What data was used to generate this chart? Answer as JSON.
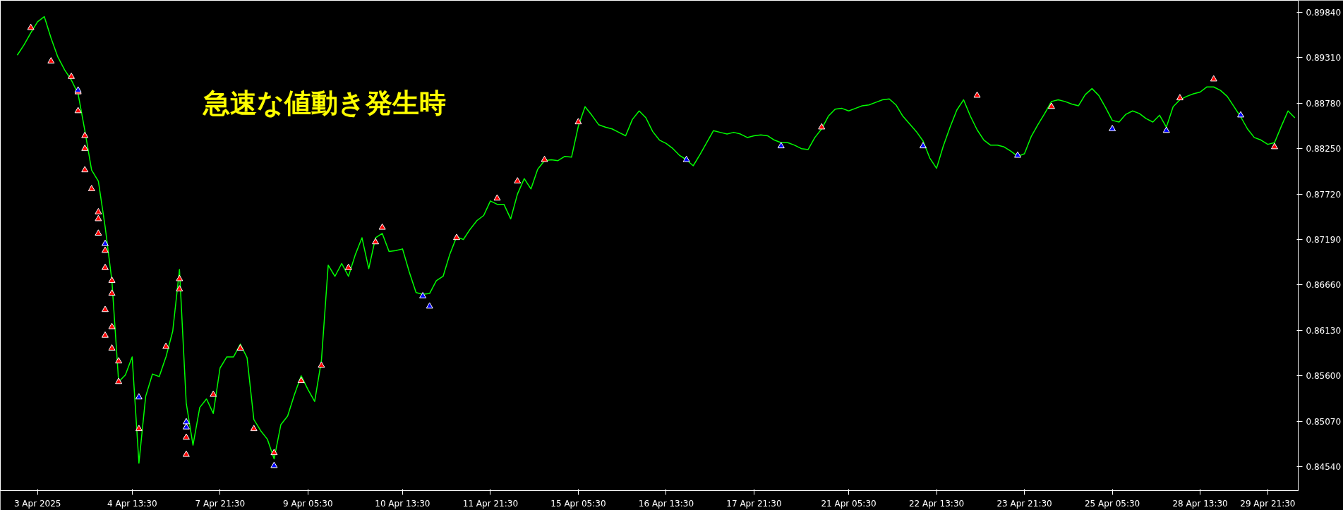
{
  "chart_data": {
    "type": "line",
    "annotations": [
      "急速な値動き発生時"
    ],
    "ylim": [
      0.8426,
      0.8998
    ],
    "yticks": [
      {
        "value": 0.8984,
        "label": "0.89840"
      },
      {
        "value": 0.8931,
        "label": "0.89310"
      },
      {
        "value": 0.8878,
        "label": "0.88780"
      },
      {
        "value": 0.8825,
        "label": "0.88250"
      },
      {
        "value": 0.8772,
        "label": "0.87720"
      },
      {
        "value": 0.8719,
        "label": "0.87190"
      },
      {
        "value": 0.8666,
        "label": "0.86660"
      },
      {
        "value": 0.8613,
        "label": "0.86130"
      },
      {
        "value": 0.856,
        "label": "0.85600"
      },
      {
        "value": 0.8507,
        "label": "0.85070"
      },
      {
        "value": 0.8454,
        "label": "0.84540"
      }
    ],
    "grid": false,
    "categories": [
      null,
      null,
      null,
      "3 Apr 2025",
      null,
      null,
      null,
      null,
      null,
      null,
      null,
      null,
      null,
      null,
      null,
      null,
      null,
      "4 Apr 13:30",
      null,
      null,
      null,
      null,
      null,
      null,
      null,
      null,
      null,
      null,
      null,
      null,
      "7 Apr 21:30",
      null,
      null,
      null,
      null,
      null,
      null,
      null,
      null,
      null,
      null,
      null,
      null,
      "9 Apr 05:30",
      null,
      null,
      null,
      null,
      null,
      null,
      null,
      null,
      null,
      null,
      null,
      null,
      null,
      "10 Apr 13:30",
      null,
      null,
      null,
      null,
      null,
      null,
      null,
      null,
      null,
      null,
      null,
      null,
      "11 Apr 21:30",
      null,
      null,
      null,
      null,
      null,
      null,
      null,
      null,
      null,
      null,
      null,
      null,
      "15 Apr 05:30",
      null,
      null,
      null,
      null,
      null,
      null,
      null,
      null,
      null,
      null,
      null,
      null,
      "16 Apr 13:30",
      null,
      null,
      null,
      null,
      null,
      null,
      null,
      null,
      null,
      null,
      null,
      null,
      "17 Apr 21:30",
      null,
      null,
      null,
      null,
      null,
      null,
      null,
      null,
      null,
      null,
      null,
      null,
      null,
      "21 Apr 05:30",
      null,
      null,
      null,
      null,
      null,
      null,
      null,
      null,
      null,
      null,
      null,
      null,
      "22 Apr 13:30",
      null,
      null,
      null,
      null,
      null,
      null,
      null,
      null,
      null,
      null,
      null,
      null,
      "23 Apr 21:30",
      null,
      null,
      null,
      null,
      null,
      null,
      null,
      null,
      null,
      null,
      null,
      null,
      "25 Apr 05:30",
      null,
      null,
      null,
      null,
      null,
      null,
      null,
      null,
      null,
      null,
      null,
      null,
      "28 Apr 13:30",
      null,
      null,
      null,
      null,
      null,
      null,
      null,
      null,
      null,
      "29 Apr 21:30",
      null,
      null,
      null,
      null
    ],
    "series": [
      {
        "color": "#00ff00",
        "values": [
          0.8934,
          0.8946,
          0.896,
          0.8973,
          0.8979,
          0.8954,
          0.8932,
          0.8917,
          0.8905,
          0.8889,
          0.8846,
          0.88,
          0.8787,
          0.8734,
          0.8671,
          0.8553,
          0.8561,
          0.8582,
          0.8458,
          0.8536,
          0.8562,
          0.8559,
          0.8582,
          0.8612,
          0.8684,
          0.8528,
          0.8479,
          0.8523,
          0.8533,
          0.8516,
          0.8569,
          0.8582,
          0.8582,
          0.8597,
          0.8581,
          0.8509,
          0.8496,
          0.8486,
          0.8463,
          0.8503,
          0.8513,
          0.8538,
          0.856,
          0.8544,
          0.853,
          0.8578,
          0.8689,
          0.8676,
          0.8691,
          0.8676,
          0.8701,
          0.8721,
          0.8685,
          0.8721,
          0.8726,
          0.8705,
          0.8706,
          0.8708,
          0.8681,
          0.8657,
          0.8655,
          0.8656,
          0.8671,
          0.8676,
          0.8702,
          0.8722,
          0.8719,
          0.8731,
          0.8741,
          0.8747,
          0.8764,
          0.876,
          0.876,
          0.8743,
          0.8772,
          0.879,
          0.8778,
          0.8801,
          0.8811,
          0.8812,
          0.8811,
          0.8816,
          0.8815,
          0.8851,
          0.8874,
          0.8864,
          0.8853,
          0.885,
          0.8848,
          0.8844,
          0.884,
          0.8859,
          0.8869,
          0.8861,
          0.8845,
          0.8835,
          0.8831,
          0.8825,
          0.8817,
          0.8812,
          0.8805,
          0.8818,
          0.8832,
          0.8846,
          0.8844,
          0.8842,
          0.8844,
          0.8842,
          0.8838,
          0.884,
          0.8841,
          0.884,
          0.8835,
          0.8832,
          0.8832,
          0.8829,
          0.8825,
          0.8824,
          0.8838,
          0.8848,
          0.8863,
          0.8871,
          0.8872,
          0.8869,
          0.8872,
          0.8875,
          0.8876,
          0.8879,
          0.8882,
          0.8883,
          0.8876,
          0.8863,
          0.8854,
          0.8845,
          0.8834,
          0.8814,
          0.8802,
          0.8828,
          0.885,
          0.887,
          0.8882,
          0.8863,
          0.8847,
          0.8835,
          0.8829,
          0.8829,
          0.8827,
          0.8822,
          0.8816,
          0.8819,
          0.8839,
          0.8853,
          0.8866,
          0.888,
          0.8882,
          0.888,
          0.8877,
          0.8875,
          0.8888,
          0.8895,
          0.8887,
          0.8873,
          0.8858,
          0.8856,
          0.8865,
          0.8869,
          0.8866,
          0.886,
          0.8856,
          0.8864,
          0.885,
          0.8874,
          0.8882,
          0.8886,
          0.8889,
          0.8891,
          0.8897,
          0.8897,
          0.8893,
          0.8886,
          0.8874,
          0.8862,
          0.8848,
          0.8838,
          0.8835,
          0.883,
          0.8832,
          0.8851,
          0.8869,
          0.8861
        ]
      },
      {
        "type": "scatter",
        "marker": "triangle",
        "color": "#ff0000",
        "values": [
          null,
          null,
          0.8966,
          null,
          null,
          0.8927,
          null,
          null,
          0.8909,
          0.8891,
          0.884,
          0.8778,
          0.8751,
          0.8706,
          0.8671,
          0.8577,
          null,
          null,
          0.8498,
          null,
          null,
          null,
          0.8594,
          null,
          0.8673,
          0.8488,
          null,
          null,
          null,
          0.8538,
          null,
          null,
          null,
          0.8592,
          null,
          0.8498,
          null,
          null,
          0.847,
          null,
          null,
          null,
          0.8554,
          null,
          null,
          0.8572,
          null,
          null,
          null,
          0.8686,
          null,
          null,
          null,
          0.8716,
          0.8733,
          null,
          null,
          null,
          null,
          null,
          null,
          null,
          null,
          null,
          null,
          0.8721,
          null,
          null,
          null,
          null,
          null,
          0.8767,
          null,
          null,
          0.8787,
          null,
          null,
          null,
          0.8812,
          null,
          null,
          null,
          null,
          0.8856,
          null,
          null,
          null,
          null,
          null,
          null,
          null,
          null,
          null,
          null,
          null,
          null,
          null,
          null,
          null,
          null,
          null,
          null,
          null,
          null,
          null,
          null,
          null,
          null,
          null,
          null,
          null,
          null,
          null,
          null,
          null,
          null,
          null,
          null,
          null,
          0.885,
          null,
          null,
          null,
          null,
          null,
          null,
          null,
          null,
          null,
          null,
          null,
          null,
          null,
          null,
          null,
          null,
          null,
          null,
          null,
          null,
          null,
          null,
          0.8887,
          null,
          null,
          null,
          null,
          null,
          null,
          null,
          null,
          null,
          null,
          0.8874,
          null,
          null,
          null,
          null,
          null,
          null,
          null,
          null,
          null,
          null,
          null,
          null,
          null,
          null,
          null,
          null,
          null,
          null,
          0.8884,
          null,
          null,
          null,
          null,
          0.8906,
          null,
          null,
          null,
          null,
          null,
          null,
          null,
          null,
          0.8827,
          null,
          null,
          null
        ]
      },
      {
        "type": "scatter",
        "marker": "triangle",
        "color": "#ff0000",
        "values": [
          null,
          null,
          null,
          null,
          null,
          null,
          null,
          null,
          null,
          0.8869,
          0.8825,
          null,
          0.8743,
          0.8686,
          0.8656,
          0.8553,
          null,
          null,
          null,
          null,
          null,
          null,
          null,
          null,
          0.8661,
          0.8468,
          null,
          null,
          null,
          null,
          null,
          null,
          null,
          null,
          null,
          null,
          null,
          null,
          null,
          null,
          null,
          null,
          null,
          null,
          null,
          null,
          null,
          null,
          null,
          null,
          null,
          null,
          null,
          null,
          null,
          null,
          null,
          null,
          null,
          null,
          null,
          null,
          null,
          null,
          null,
          null,
          null,
          null,
          null,
          null,
          null,
          null,
          null,
          null,
          null,
          null,
          null,
          null,
          null,
          null,
          null,
          null,
          null,
          null,
          null,
          null,
          null,
          null,
          null,
          null,
          null,
          null,
          null,
          null,
          null,
          null,
          null,
          null,
          null,
          null,
          null,
          null,
          null,
          null,
          null,
          null,
          null,
          null,
          null,
          null,
          null,
          null,
          null,
          null,
          null,
          null,
          null,
          null,
          null,
          null,
          null,
          null,
          null,
          null,
          null,
          null,
          null,
          null,
          null,
          null,
          null,
          null,
          null,
          null,
          null,
          null,
          null,
          null,
          null,
          null,
          null,
          null,
          null,
          null,
          null,
          null,
          null,
          null,
          null,
          null,
          null,
          null,
          null,
          null,
          null,
          null,
          null,
          null,
          null,
          null,
          null,
          null,
          null,
          null,
          null,
          null,
          null,
          null,
          null,
          null,
          null,
          null,
          null,
          null,
          null,
          null,
          null,
          null,
          null,
          null,
          null,
          null,
          null,
          null,
          null,
          null,
          null,
          null,
          null,
          null
        ]
      },
      {
        "type": "scatter",
        "marker": "triangle",
        "color": "#ff0000",
        "values": [
          null,
          null,
          null,
          null,
          null,
          null,
          null,
          null,
          null,
          null,
          0.88,
          null,
          0.8726,
          0.8637,
          0.8617,
          null,
          null,
          null,
          null,
          null,
          null,
          null,
          null,
          null,
          null,
          null,
          null,
          null,
          null,
          null,
          null,
          null,
          null,
          null,
          null,
          null,
          null,
          null,
          null,
          null,
          null,
          null,
          null,
          null,
          null,
          null,
          null,
          null,
          null,
          null,
          null,
          null,
          null,
          null,
          null,
          null,
          null,
          null,
          null,
          null,
          null,
          null,
          null,
          null,
          null,
          null,
          null,
          null,
          null,
          null,
          null,
          null,
          null,
          null,
          null,
          null,
          null,
          null,
          null,
          null,
          null,
          null,
          null,
          null,
          null,
          null,
          null,
          null,
          null,
          null,
          null,
          null,
          null,
          null,
          null,
          null,
          null,
          null,
          null,
          null,
          null,
          null,
          null,
          null,
          null,
          null,
          null,
          null,
          null,
          null,
          null,
          null,
          null,
          null,
          null,
          null,
          null,
          null,
          null,
          null,
          null,
          null,
          null,
          null,
          null,
          null,
          null,
          null,
          null,
          null,
          null,
          null,
          null,
          null,
          null,
          null,
          null,
          null,
          null,
          null,
          null,
          null,
          null,
          null,
          null,
          null,
          null,
          null,
          null,
          null,
          null,
          null,
          null,
          null,
          null,
          null,
          null,
          null,
          null,
          null,
          null,
          null,
          null,
          null,
          null,
          null,
          null,
          null,
          null,
          null,
          null,
          null,
          null,
          null,
          null,
          null,
          null,
          null,
          null,
          null,
          null,
          null,
          null,
          null,
          null,
          null,
          null,
          null,
          null,
          null
        ]
      },
      {
        "type": "scatter",
        "marker": "triangle",
        "color": "#ff0000",
        "values": [
          null,
          null,
          null,
          null,
          null,
          null,
          null,
          null,
          null,
          null,
          null,
          null,
          null,
          0.8607,
          0.8592,
          null,
          null,
          null,
          null,
          null,
          null,
          null,
          null,
          null,
          null,
          null,
          null,
          null,
          null,
          null,
          null,
          null,
          null,
          null,
          null,
          null,
          null,
          null,
          null,
          null,
          null,
          null,
          null,
          null,
          null,
          null,
          null,
          null,
          null,
          null,
          null,
          null,
          null,
          null,
          null,
          null,
          null,
          null,
          null,
          null,
          null,
          null,
          null,
          null,
          null,
          null,
          null,
          null,
          null,
          null,
          null,
          null,
          null,
          null,
          null,
          null,
          null,
          null,
          null,
          null,
          null,
          null,
          null,
          null,
          null,
          null,
          null,
          null,
          null,
          null,
          null,
          null,
          null,
          null,
          null,
          null,
          null,
          null,
          null,
          null,
          null,
          null,
          null,
          null,
          null,
          null,
          null,
          null,
          null,
          null,
          null,
          null,
          null,
          null,
          null,
          null,
          null,
          null,
          null,
          null,
          null,
          null,
          null,
          null,
          null,
          null,
          null,
          null,
          null,
          null,
          null,
          null,
          null,
          null,
          null,
          null,
          null,
          null,
          null,
          null,
          null,
          null,
          null,
          null,
          null,
          null,
          null,
          null,
          null,
          null,
          null,
          null,
          null,
          null,
          null,
          null,
          null,
          null,
          null,
          null,
          null,
          null,
          null,
          null,
          null,
          null,
          null,
          null,
          null,
          null,
          null,
          null,
          null,
          null,
          null,
          null,
          null,
          null,
          null,
          null,
          null,
          null,
          null,
          null,
          null,
          null,
          null,
          null,
          null,
          null
        ]
      },
      {
        "type": "scatter",
        "marker": "triangle",
        "color": "#0000ff",
        "values": [
          null,
          null,
          null,
          null,
          null,
          null,
          null,
          null,
          null,
          0.8893,
          null,
          null,
          null,
          0.8714,
          null,
          null,
          null,
          null,
          0.8535,
          null,
          null,
          null,
          null,
          null,
          null,
          0.8506,
          null,
          null,
          null,
          null,
          null,
          null,
          null,
          null,
          null,
          null,
          null,
          null,
          0.8455,
          null,
          null,
          null,
          null,
          null,
          null,
          null,
          null,
          null,
          null,
          null,
          null,
          null,
          null,
          null,
          null,
          null,
          null,
          null,
          null,
          null,
          0.8653,
          0.8641,
          null,
          null,
          null,
          null,
          null,
          null,
          null,
          null,
          null,
          null,
          null,
          null,
          null,
          null,
          null,
          null,
          null,
          null,
          null,
          null,
          null,
          null,
          null,
          null,
          null,
          null,
          null,
          null,
          null,
          null,
          null,
          null,
          null,
          null,
          null,
          null,
          null,
          0.8812,
          null,
          null,
          null,
          null,
          null,
          null,
          null,
          null,
          null,
          null,
          null,
          null,
          null,
          0.8828,
          null,
          null,
          null,
          null,
          null,
          null,
          null,
          null,
          null,
          null,
          null,
          null,
          null,
          null,
          null,
          null,
          null,
          null,
          null,
          null,
          0.8828,
          null,
          null,
          null,
          null,
          null,
          null,
          null,
          null,
          null,
          null,
          null,
          null,
          null,
          0.8817,
          null,
          null,
          null,
          null,
          null,
          null,
          null,
          null,
          null,
          null,
          null,
          null,
          null,
          0.8848,
          null,
          null,
          null,
          null,
          null,
          null,
          null,
          0.8846,
          null,
          null,
          null,
          null,
          null,
          null,
          null,
          null,
          null,
          null,
          0.8864,
          null,
          null,
          null,
          null,
          null,
          null,
          null,
          null
        ]
      },
      {
        "type": "scatter",
        "marker": "triangle",
        "color": "#0000ff",
        "values": [
          null,
          null,
          null,
          null,
          null,
          null,
          null,
          null,
          null,
          null,
          null,
          null,
          null,
          null,
          null,
          null,
          null,
          null,
          null,
          null,
          null,
          null,
          null,
          null,
          null,
          0.85,
          null,
          null,
          null,
          null,
          null,
          null,
          null,
          null,
          null,
          null,
          null,
          null,
          null,
          null,
          null,
          null,
          null,
          null,
          null,
          null,
          null,
          null,
          null,
          null,
          null,
          null,
          null,
          null,
          null,
          null,
          null,
          null,
          null,
          null,
          null,
          null,
          null,
          null,
          null,
          null,
          null,
          null,
          null,
          null,
          null,
          null,
          null,
          null,
          null,
          null,
          null,
          null,
          null,
          null,
          null,
          null,
          null,
          null,
          null,
          null,
          null,
          null,
          null,
          null,
          null,
          null,
          null,
          null,
          null,
          null,
          null,
          null,
          null,
          null,
          null,
          null,
          null,
          null,
          null,
          null,
          null,
          null,
          null,
          null,
          null,
          null,
          null,
          null,
          null,
          null,
          null,
          null,
          null,
          null,
          null,
          null,
          null,
          null,
          null,
          null,
          null,
          null,
          null,
          null,
          null,
          null,
          null,
          null,
          null,
          null,
          null,
          null,
          null,
          null,
          null,
          null,
          null,
          null,
          null,
          null,
          null,
          null,
          null,
          null,
          null,
          null,
          null,
          null,
          null,
          null,
          null,
          null,
          null,
          null,
          null,
          null,
          null,
          null,
          null,
          null,
          null,
          null,
          null,
          null,
          null,
          null,
          null,
          null,
          null,
          null,
          null,
          null,
          null,
          null,
          null,
          null,
          null,
          null,
          null,
          null,
          null,
          null,
          null,
          null
        ]
      }
    ]
  }
}
